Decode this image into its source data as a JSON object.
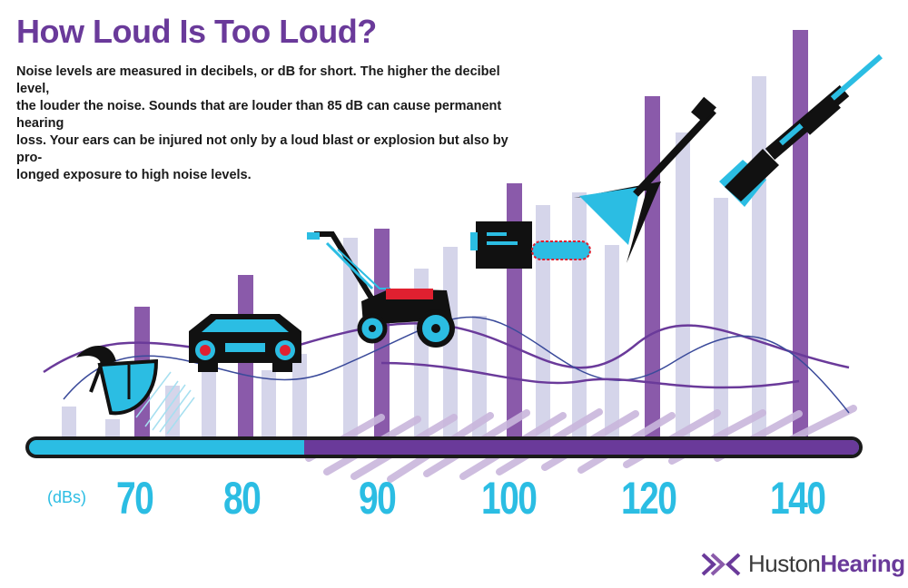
{
  "title": "How Loud Is Too Loud?",
  "intro": {
    "line1": "Noise levels are measured in decibels, or dB for short. The higher the decibel level,",
    "line2": "the louder the noise. Sounds that are louder than 85 dB can cause permanent hearing",
    "line3": "loss. Your ears can be injured not only by a loud blast or explosion but also by pro-",
    "line4": "longed exposure to high noise levels."
  },
  "scale": {
    "unit_label": "(dBs)",
    "ticks": [
      "70",
      "80",
      "90",
      "100",
      "120",
      "140"
    ],
    "harmful_threshold_db": 85
  },
  "icons": [
    "leaf-blower-icon",
    "car-icon",
    "lawn-mower-icon",
    "chainsaw-icon",
    "electric-guitar-icon",
    "shotgun-icon"
  ],
  "logo": {
    "part1": "Huston",
    "part2": "Hearing"
  },
  "colors": {
    "purple": "#6a3a9a",
    "cyan": "#2bbde3",
    "bar_light": "#d5d5ea",
    "bar_dark": "#8a5aaa",
    "hatch": "#c9b6dc",
    "red": "#e02030"
  }
}
